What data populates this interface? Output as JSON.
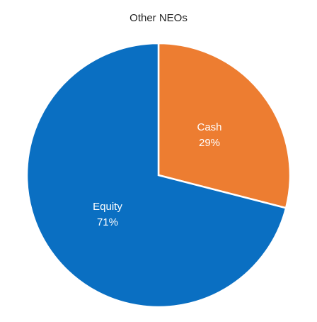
{
  "chart_data": {
    "type": "pie",
    "title": "Other NEOs",
    "categories": [
      "Cash",
      "Equity"
    ],
    "values": [
      29,
      71
    ],
    "value_labels": [
      "29%",
      "71%"
    ],
    "colors": [
      "#ed7d31",
      "#0a6fc2"
    ]
  }
}
